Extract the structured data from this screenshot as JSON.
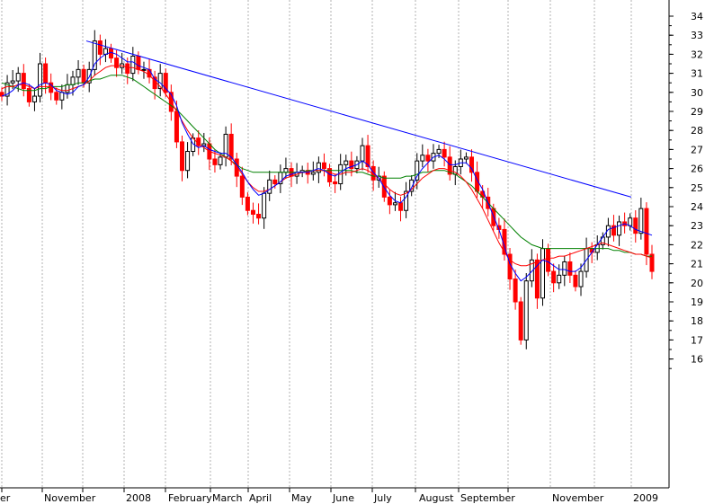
{
  "chart_data": {
    "type": "candlestick",
    "title": "",
    "xlabel": "",
    "ylabel": "",
    "ylim": [
      15.2,
      34.6
    ],
    "y_ticks": [
      16,
      17,
      18,
      19,
      20,
      21,
      22,
      23,
      24,
      25,
      26,
      27,
      28,
      29,
      30,
      31,
      32,
      33,
      34
    ],
    "y_axis_side": "right",
    "x_labels": [
      "er",
      "November",
      "2008",
      "February",
      "March",
      "April",
      "May",
      "June",
      "July",
      "August",
      "September",
      "November",
      "2009"
    ],
    "grid": "vertical dotted",
    "colors": {
      "up": "#000000",
      "down": "#ff0000",
      "trendline": "#0000ff",
      "ma_short": "#0000ff",
      "ma_medium": "#ff0000",
      "ma_long": "#008000"
    },
    "trendline": {
      "from": {
        "x": "late October 2007",
        "y": 32.7
      },
      "to": {
        "x": "late December 2008",
        "y": 24.5
      }
    },
    "closes": [
      29.8,
      30.5,
      30.6,
      31.0,
      30.2,
      29.5,
      29.8,
      31.5,
      30.5,
      30.0,
      29.6,
      30.0,
      30.4,
      30.8,
      31.2,
      30.5,
      31.2,
      32.7,
      32.0,
      32.3,
      31.8,
      31.3,
      31.5,
      31.0,
      31.9,
      31.2,
      31.2,
      30.8,
      30.2,
      31.0,
      30.0,
      29.0,
      27.4,
      25.9,
      26.9,
      27.6,
      27.2,
      27.3,
      26.5,
      26.2,
      26.6,
      27.8,
      26.5,
      25.6,
      24.5,
      23.8,
      23.6,
      23.4,
      24.7,
      25.4,
      25.2,
      25.8,
      26.0,
      25.6,
      25.8,
      25.9,
      25.7,
      25.8,
      26.3,
      26.0,
      25.3,
      25.2,
      26.2,
      26.4,
      26.0,
      26.4,
      27.2,
      26.1,
      25.4,
      25.6,
      24.5,
      24.1,
      24.2,
      23.8,
      24.8,
      25.4,
      26.4,
      26.7,
      26.4,
      26.8,
      27.0,
      26.6,
      25.7,
      26.1,
      26.5,
      26.6,
      25.8,
      24.8,
      24.5,
      23.9,
      23.0,
      22.8,
      21.5,
      20.2,
      19.0,
      17.0,
      20.1,
      21.2,
      19.2,
      21.8,
      20.6,
      20.0,
      20.4,
      21.1,
      20.4,
      19.8,
      20.6,
      21.8,
      21.6,
      22.0,
      22.4,
      23.0,
      22.5,
      23.2,
      23.0,
      23.4,
      22.6,
      23.9,
      21.5,
      20.6
    ],
    "ma_short": [
      29.8,
      29.9,
      30.1,
      30.4,
      30.5,
      30.4,
      30.2,
      30.4,
      30.5,
      30.4,
      30.1,
      30.0,
      29.9,
      30.0,
      30.3,
      30.4,
      30.8,
      31.5,
      31.8,
      32.0,
      32.1,
      32.0,
      31.8,
      31.6,
      31.6,
      31.4,
      31.3,
      31.2,
      30.7,
      30.5,
      30.2,
      29.9,
      29.3,
      28.4,
      27.8,
      27.3,
      27.1,
      27.2,
      27.0,
      26.9,
      26.8,
      26.8,
      26.6,
      26.2,
      25.8,
      25.3,
      24.9,
      24.6,
      24.7,
      24.9,
      25.1,
      25.3,
      25.6,
      25.7,
      25.8,
      25.8,
      25.8,
      25.9,
      26.0,
      25.9,
      25.7,
      25.6,
      25.8,
      26.0,
      26.1,
      26.2,
      26.4,
      26.2,
      25.8,
      25.5,
      25.0,
      24.6,
      24.3,
      24.2,
      24.5,
      25.0,
      25.6,
      26.0,
      26.3,
      26.6,
      26.7,
      26.5,
      26.2,
      26.2,
      26.3,
      26.3,
      26.0,
      25.4,
      24.9,
      24.2,
      23.5,
      22.8,
      21.9,
      21.0,
      20.5,
      20.1,
      20.3,
      20.6,
      20.9,
      21.2,
      21.1,
      20.9,
      20.7,
      20.7,
      20.6,
      20.6,
      20.8,
      21.2,
      21.6,
      22.0,
      22.4,
      22.8,
      22.9,
      23.0,
      23.1,
      23.0,
      22.8,
      22.7,
      22.6,
      22.5
    ],
    "ma_medium": [
      30.2,
      30.3,
      30.3,
      30.4,
      30.4,
      30.3,
      30.2,
      30.3,
      30.3,
      30.3,
      30.2,
      30.1,
      30.1,
      30.2,
      30.3,
      30.4,
      30.6,
      30.9,
      31.1,
      31.3,
      31.4,
      31.4,
      31.4,
      31.3,
      31.3,
      31.2,
      31.1,
      30.9,
      30.6,
      30.3,
      29.9,
      29.5,
      29.0,
      28.5,
      28.0,
      27.6,
      27.3,
      27.1,
      26.9,
      26.8,
      26.7,
      26.6,
      26.4,
      26.1,
      25.7,
      25.3,
      25.0,
      24.8,
      24.8,
      24.9,
      25.1,
      25.3,
      25.5,
      25.6,
      25.7,
      25.8,
      25.8,
      25.9,
      25.9,
      25.9,
      25.8,
      25.7,
      25.7,
      25.8,
      25.8,
      25.9,
      26.0,
      25.9,
      25.7,
      25.5,
      25.2,
      24.9,
      24.7,
      24.6,
      24.7,
      24.9,
      25.2,
      25.5,
      25.7,
      25.9,
      26.0,
      26.0,
      25.9,
      25.8,
      25.6,
      25.3,
      24.9,
      24.4,
      23.9,
      23.3,
      22.7,
      22.1,
      21.6,
      21.2,
      21.0,
      20.9,
      20.9,
      21.0,
      21.1,
      21.2,
      21.3,
      21.3,
      21.4,
      21.4,
      21.5,
      21.6,
      21.7,
      21.8,
      21.9,
      22.0,
      22.1,
      22.0,
      21.9,
      21.8,
      21.7,
      21.6,
      21.5,
      21.5,
      21.4,
      21.3
    ],
    "ma_long": [
      30.5,
      30.4,
      30.3,
      30.2,
      30.1,
      30.1,
      30.1,
      30.2,
      30.2,
      30.3,
      30.3,
      30.3,
      30.4,
      30.4,
      30.5,
      30.5,
      30.6,
      30.7,
      30.7,
      30.8,
      30.9,
      30.9,
      30.9,
      30.8,
      30.7,
      30.5,
      30.3,
      30.1,
      29.9,
      29.7,
      29.5,
      29.3,
      29.1,
      28.8,
      28.5,
      28.2,
      27.9,
      27.6,
      27.3,
      27.0,
      26.8,
      26.6,
      26.4,
      26.2,
      26.0,
      25.9,
      25.8,
      25.8,
      25.8,
      25.8,
      25.8,
      25.8,
      25.8,
      25.8,
      25.8,
      25.8,
      25.9,
      25.9,
      25.9,
      25.9,
      25.9,
      25.9,
      25.9,
      25.9,
      25.9,
      25.8,
      25.8,
      25.7,
      25.6,
      25.6,
      25.5,
      25.5,
      25.5,
      25.5,
      25.6,
      25.6,
      25.7,
      25.8,
      25.8,
      25.9,
      25.9,
      25.9,
      25.8,
      25.7,
      25.5,
      25.3,
      25.1,
      24.8,
      24.5,
      24.2,
      23.9,
      23.6,
      23.3,
      23.0,
      22.7,
      22.4,
      22.2,
      22.0,
      21.9,
      21.8,
      21.8,
      21.8,
      21.8,
      21.8,
      21.8,
      21.8,
      21.8,
      21.8,
      21.8,
      21.8,
      21.8,
      21.8,
      21.7,
      21.7,
      21.6,
      21.6,
      21.5,
      21.5,
      21.4,
      21.4
    ]
  }
}
